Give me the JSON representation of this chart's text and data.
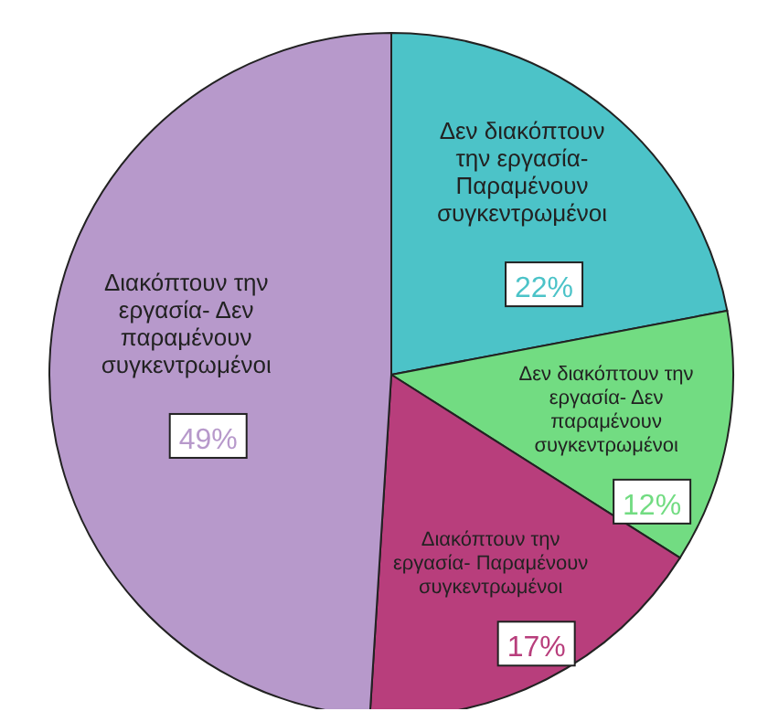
{
  "chart_data": {
    "type": "pie",
    "categories": [
      "Δεν διακόπτουν την εργασία- Παραμένουν συγκεντρωμένοι",
      "Δεν διακόπτουν την εργασία- Δεν παραμένουν συγκεντρωμένοι",
      "Διακόπτουν την εργασία- Παραμένουν συγκεντρωμένοι",
      "Διακόπτουν την εργασία- Δεν παραμένουν συγκεντρωμένοι"
    ],
    "values": [
      22,
      12,
      17,
      49
    ],
    "value_labels": [
      "22%",
      "12%",
      "17%",
      "49%"
    ],
    "colors": [
      "#4cc3c8",
      "#72dc82",
      "#b83e7c",
      "#b799cb"
    ]
  }
}
